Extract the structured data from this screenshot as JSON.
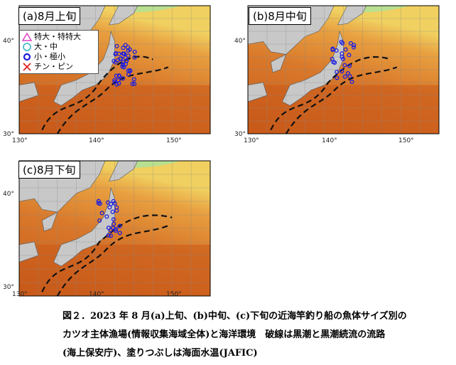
{
  "panels": [
    {
      "id": "a",
      "title": "(a)8月上旬"
    },
    {
      "id": "b",
      "title": "(b)8月中旬"
    },
    {
      "id": "c",
      "title": "(c)8月下旬"
    }
  ],
  "axes": {
    "x_ticks": [
      "130°",
      "140°",
      "150°"
    ],
    "y_ticks": [
      "40°",
      "30°"
    ]
  },
  "legend": {
    "items": [
      {
        "label": "特大・特特大",
        "symbol": "triangle",
        "color": "#e040c0"
      },
      {
        "label": "大・中",
        "symbol": "circle",
        "color": "#30b0c8"
      },
      {
        "label": "小・極小",
        "symbol": "circle",
        "color": "#1e1ee0"
      },
      {
        "label": "チン・ピン",
        "symbol": "cross",
        "color": "#e02020"
      }
    ]
  },
  "caption": {
    "line1": "図２．2023 年 8 月(a)上旬、(b)中旬、(c)下旬の近海竿釣り船の魚体サイズ別の",
    "line2": "カツオ主体漁場(情報収集海域全体)と海洋環境　破線は黒潮と黒潮続流の流路",
    "line3": "(海上保安庁)、塗りつぶしは海面水温(JAFIC)"
  },
  "colors": {
    "sea_warm": "#c85a1a",
    "sea_mid": "#d9782a",
    "sea_cool": "#e8a040",
    "sea_cold": "#f0d060",
    "cold_north": "#b8e090",
    "land": "#c8c8c8",
    "current": "#111111",
    "catch_small": "#1e1ee0",
    "grid": "#888888"
  }
}
